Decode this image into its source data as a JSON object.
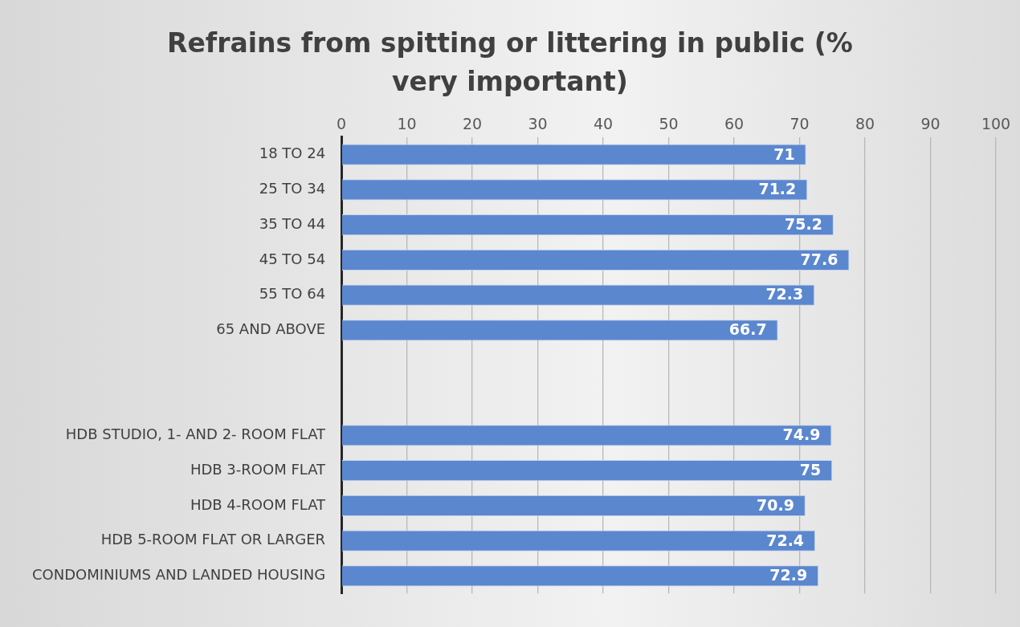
{
  "chart_data": {
    "type": "bar",
    "orientation": "horizontal",
    "title": "Refrains from spitting or littering in public (% very important)",
    "categories": [
      "18 TO 24",
      "25 TO 34",
      "35 TO 44",
      "45 TO 54",
      "55 TO 64",
      "65 AND ABOVE",
      null,
      null,
      "HDB STUDIO, 1- AND 2- ROOM FLAT",
      "HDB 3-ROOM FLAT",
      "HDB 4-ROOM FLAT",
      "HDB 5-ROOM FLAT OR LARGER",
      "CONDOMINIUMS AND LANDED HOUSING"
    ],
    "values": [
      71,
      71.2,
      75.2,
      77.6,
      72.3,
      66.7,
      null,
      null,
      74.9,
      75,
      70.9,
      72.4,
      72.9
    ],
    "color": "#5b87cf",
    "xlim": [
      0,
      100
    ],
    "xticks": [
      0,
      10,
      20,
      30,
      40,
      50,
      60,
      70,
      80,
      90,
      100
    ],
    "grid": "x",
    "data_labels": true,
    "legend": false
  }
}
